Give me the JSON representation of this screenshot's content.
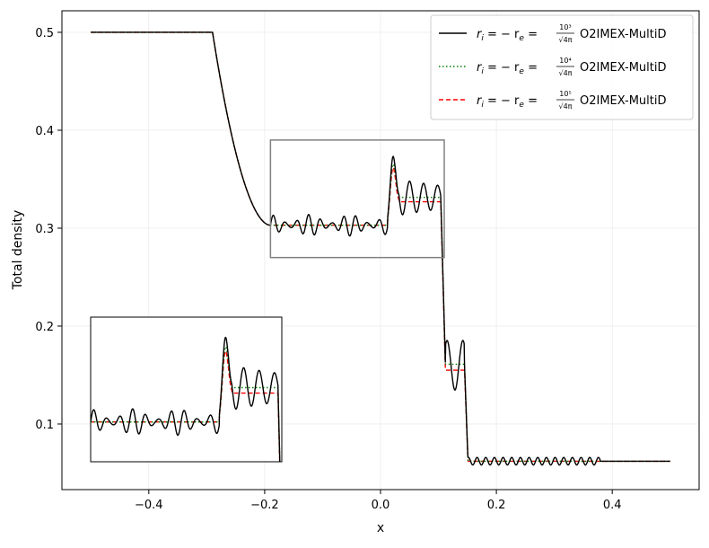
{
  "chart_data": {
    "type": "line",
    "title": "",
    "xlabel": "x",
    "ylabel": "Total density",
    "xlim": [
      -0.55,
      0.55
    ],
    "ylim": [
      0.033,
      0.522
    ],
    "xticks": [
      -0.4,
      -0.2,
      0.0,
      0.2,
      0.4
    ],
    "xtick_labels": [
      "−0.4",
      "−0.2",
      "0.0",
      "0.2",
      "0.4"
    ],
    "yticks": [
      0.1,
      0.2,
      0.3,
      0.4,
      0.5
    ],
    "ytick_labels": [
      "0.1",
      "0.2",
      "0.3",
      "0.4",
      "0.5"
    ],
    "grid": true,
    "legend_placement": "top-right",
    "legend_prefix": "r",
    "legend_prefix_sub": "i",
    "legend_mid": " = − r",
    "legend_mid_sub": "e",
    "legend_eq": " = ",
    "legend_frac_den": "√4π",
    "series": [
      {
        "name": "O2IMEX-MultiD",
        "exponent": "10³",
        "color": "#000000",
        "style": "solid",
        "oscillation": 0.011,
        "plateau": 0.3315,
        "plateau2": 0.16,
        "spike": 0.383
      },
      {
        "name": "O2IMEX-MultiD",
        "exponent": "10⁴",
        "color": "#008000",
        "style": "dotted",
        "oscillation": 0.0,
        "plateau": 0.3315,
        "plateau2": 0.161,
        "spike": 0.375
      },
      {
        "name": "O2IMEX-MultiD",
        "exponent": "10⁵",
        "color": "#ff0000",
        "style": "dashed",
        "oscillation": 0.0,
        "plateau": 0.327,
        "plateau2": 0.155,
        "spike": 0.37
      }
    ],
    "profile": {
      "left_state": 0.5,
      "rarefaction": [
        -0.29,
        -0.19
      ],
      "post_rarefaction": 0.303,
      "contact": 0.02,
      "shock1": 0.108,
      "shock2": 0.148,
      "right_state": 0.062,
      "x_range": [
        -0.5,
        0.5
      ]
    },
    "zoom_box": {
      "x": [
        -0.19,
        0.11
      ],
      "y": [
        0.27,
        0.39
      ]
    }
  }
}
